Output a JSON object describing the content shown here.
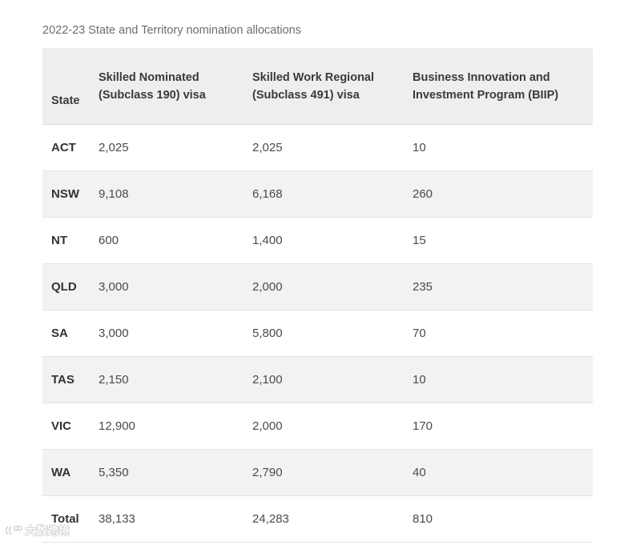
{
  "caption": "2022-23 State and Territory nomination allocations",
  "table": {
    "headers": {
      "state": "State",
      "col190": [
        "Skilled Nominated",
        "(Subclass 190) visa"
      ],
      "col491": [
        "Skilled Work Regional",
        "(Subclass 491) visa"
      ],
      "biip": [
        "Business Innovation and",
        "Investment Program (BIIP)"
      ]
    },
    "rows": [
      {
        "state": "ACT",
        "v190": "2,025",
        "v491": "2,025",
        "biip": "10"
      },
      {
        "state": "NSW",
        "v190": "9,108",
        "v491": "6,168",
        "biip": "260"
      },
      {
        "state": "NT",
        "v190": "600",
        "v491": "1,400",
        "biip": "15"
      },
      {
        "state": "QLD",
        "v190": "3,000",
        "v491": "2,000",
        "biip": "235"
      },
      {
        "state": "SA",
        "v190": "3,000",
        "v491": "5,800",
        "biip": "70"
      },
      {
        "state": "TAS",
        "v190": "2,150",
        "v491": "2,100",
        "biip": "10"
      },
      {
        "state": "VIC",
        "v190": "12,900",
        "v491": "2,000",
        "biip": "170"
      },
      {
        "state": "WA",
        "v190": "5,350",
        "v491": "2,790",
        "biip": "40"
      },
      {
        "state": "Total",
        "v190": "38,133",
        "v491": "24,283",
        "biip": "810"
      }
    ]
  },
  "watermark": {
    "text": "大数跨境",
    "icon": "watermark-logo-icon"
  }
}
